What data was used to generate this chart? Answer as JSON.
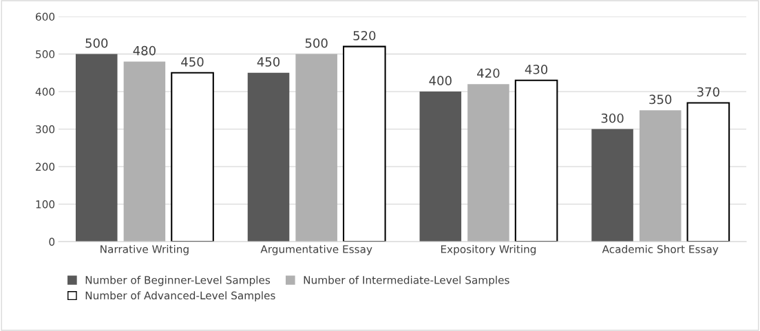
{
  "chart_data": {
    "type": "bar",
    "categories": [
      "Narrative Writing",
      "Argumentative Essay",
      "Expository Writing",
      "Academic Short Essay"
    ],
    "series": [
      {
        "name": "Number of Beginner-Level Samples",
        "color": "#595959",
        "values": [
          500,
          450,
          400,
          300
        ]
      },
      {
        "name": "Number of Intermediate-Level Samples",
        "color": "#b0b0b0",
        "values": [
          480,
          500,
          420,
          350
        ]
      },
      {
        "name": "Number of Advanced-Level Samples",
        "color": "#ffffff",
        "values": [
          450,
          520,
          430,
          370
        ]
      }
    ],
    "ylim": [
      0,
      600
    ],
    "yticks": [
      0,
      100,
      200,
      300,
      400,
      500,
      600
    ],
    "grid": "y",
    "legend": "bottom",
    "data_labels": true
  }
}
